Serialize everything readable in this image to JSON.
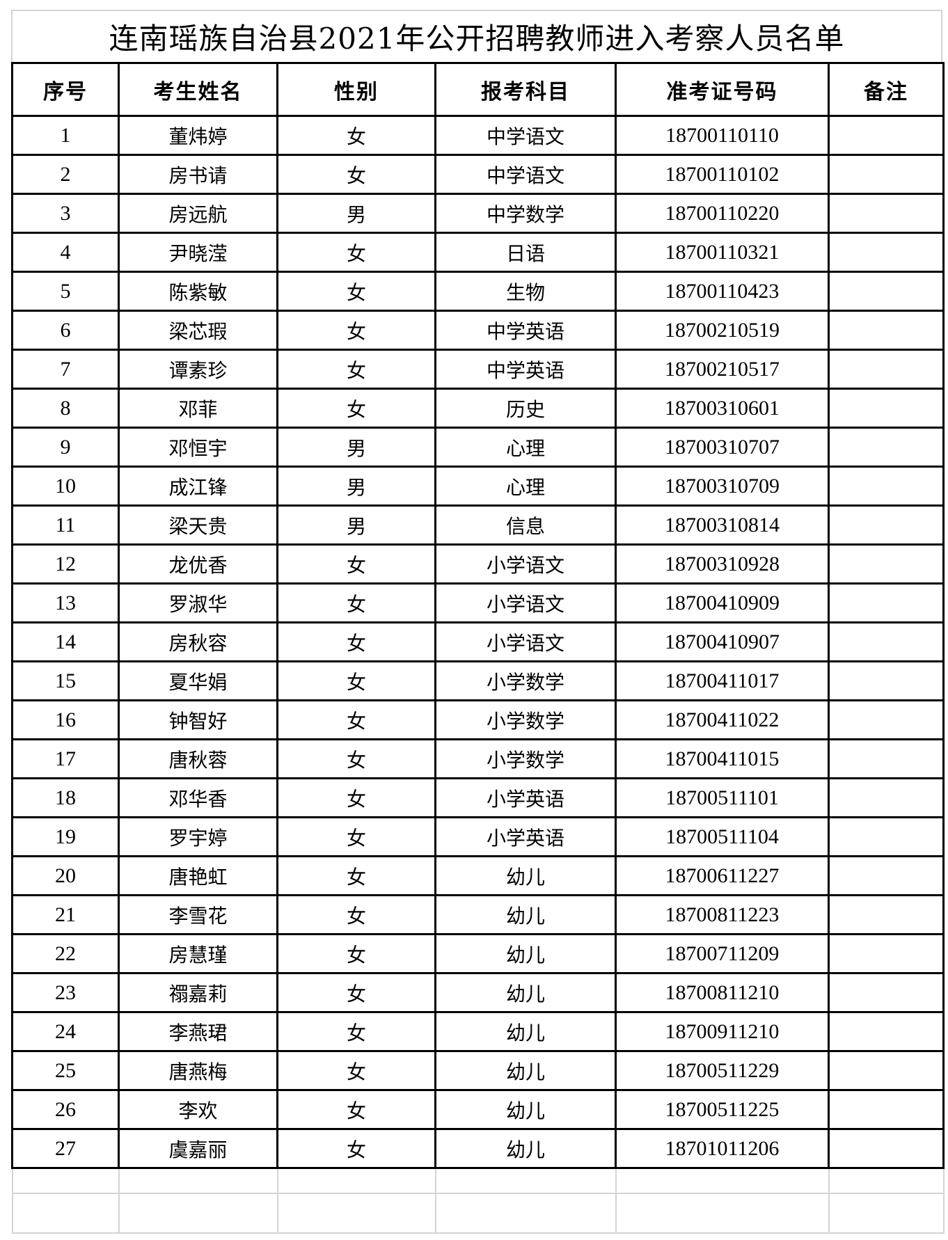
{
  "title": "连南瑶族自治县2021年公开招聘教师进入考察人员名单",
  "columns": [
    "序号",
    "考生姓名",
    "性别",
    "报考科目",
    "准考证号码",
    "备注"
  ],
  "rows": [
    [
      "1",
      "董炜婷",
      "女",
      "中学语文",
      "18700110110",
      ""
    ],
    [
      "2",
      "房书请",
      "女",
      "中学语文",
      "18700110102",
      ""
    ],
    [
      "3",
      "房远航",
      "男",
      "中学数学",
      "18700110220",
      ""
    ],
    [
      "4",
      "尹晓滢",
      "女",
      "日语",
      "18700110321",
      ""
    ],
    [
      "5",
      "陈紫敏",
      "女",
      "生物",
      "18700110423",
      ""
    ],
    [
      "6",
      "梁芯瑕",
      "女",
      "中学英语",
      "18700210519",
      ""
    ],
    [
      "7",
      "谭素珍",
      "女",
      "中学英语",
      "18700210517",
      ""
    ],
    [
      "8",
      "邓菲",
      "女",
      "历史",
      "18700310601",
      ""
    ],
    [
      "9",
      "邓恒宇",
      "男",
      "心理",
      "18700310707",
      ""
    ],
    [
      "10",
      "成江锋",
      "男",
      "心理",
      "18700310709",
      ""
    ],
    [
      "11",
      "梁天贵",
      "男",
      "信息",
      "18700310814",
      ""
    ],
    [
      "12",
      "龙优香",
      "女",
      "小学语文",
      "18700310928",
      ""
    ],
    [
      "13",
      "罗淑华",
      "女",
      "小学语文",
      "18700410909",
      ""
    ],
    [
      "14",
      "房秋容",
      "女",
      "小学语文",
      "18700410907",
      ""
    ],
    [
      "15",
      "夏华娟",
      "女",
      "小学数学",
      "18700411017",
      ""
    ],
    [
      "16",
      "钟智好",
      "女",
      "小学数学",
      "18700411022",
      ""
    ],
    [
      "17",
      "唐秋蓉",
      "女",
      "小学数学",
      "18700411015",
      ""
    ],
    [
      "18",
      "邓华香",
      "女",
      "小学英语",
      "18700511101",
      ""
    ],
    [
      "19",
      "罗宇婷",
      "女",
      "小学英语",
      "18700511104",
      ""
    ],
    [
      "20",
      "唐艳虹",
      "女",
      "幼儿",
      "18700611227",
      ""
    ],
    [
      "21",
      "李雪花",
      "女",
      "幼儿",
      "18700811223",
      ""
    ],
    [
      "22",
      "房慧瑾",
      "女",
      "幼儿",
      "18700711209",
      ""
    ],
    [
      "23",
      "禤嘉莉",
      "女",
      "幼儿",
      "18700811210",
      ""
    ],
    [
      "24",
      "李燕珺",
      "女",
      "幼儿",
      "18700911210",
      ""
    ],
    [
      "25",
      "唐燕梅",
      "女",
      "幼儿",
      "18700511229",
      ""
    ],
    [
      "26",
      "李欢",
      "女",
      "幼儿",
      "18700511225",
      ""
    ],
    [
      "27",
      "虞嘉丽",
      "女",
      "幼儿",
      "18701011206",
      ""
    ]
  ]
}
